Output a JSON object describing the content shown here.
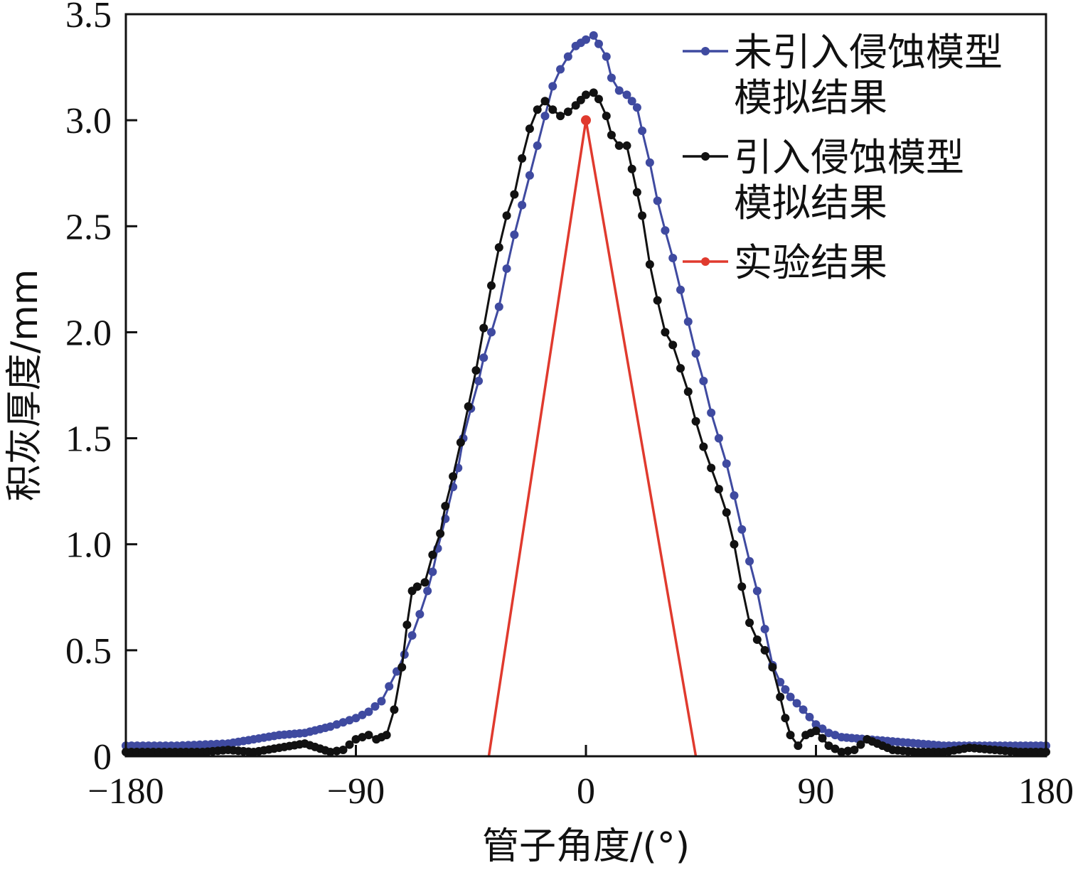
{
  "chart_data": {
    "type": "line",
    "xlabel": "管子角度/(°)",
    "ylabel": "积灰厚度/mm",
    "xlim": [
      -180,
      180
    ],
    "ylim": [
      0,
      3.5
    ],
    "x_ticks": [
      -180,
      -90,
      0,
      90,
      180
    ],
    "x_tick_labels": [
      "−180",
      "−90",
      "0",
      "90",
      "180"
    ],
    "y_ticks": [
      0,
      0.5,
      1.0,
      1.5,
      2.0,
      2.5,
      3.0,
      3.5
    ],
    "y_tick_labels": [
      "0",
      "0.5",
      "1.0",
      "1.5",
      "2.0",
      "2.5",
      "3.0",
      "3.5"
    ],
    "grid": false,
    "legend_position": "top-right",
    "series": [
      {
        "name": "未引入侵蚀模型模拟结果",
        "legend_lines": [
          "未引入侵蚀模型",
          "模拟结果"
        ],
        "color": "#3f4aa0",
        "marker": true,
        "x": [
          -180,
          -160,
          -140,
          -130,
          -120,
          -110,
          -100,
          -95,
          -90,
          -85,
          -80,
          -77,
          -74,
          -71,
          -68,
          -65,
          -62,
          -60,
          -58,
          -55,
          -52,
          -50,
          -48,
          -45,
          -42,
          -40,
          -37,
          -34,
          -31,
          -28,
          -25,
          -22,
          -19,
          -16,
          -13,
          -10,
          -7,
          -4,
          0,
          3,
          5,
          8,
          10,
          13,
          16,
          20,
          22,
          25,
          28,
          31,
          34,
          37,
          40,
          43,
          46,
          49,
          52,
          55,
          58,
          61,
          64,
          67,
          70,
          73,
          76,
          80,
          85,
          90,
          95,
          100,
          110,
          120,
          130,
          140,
          150,
          160,
          170,
          180
        ],
        "y": [
          0.05,
          0.05,
          0.06,
          0.08,
          0.1,
          0.11,
          0.14,
          0.16,
          0.18,
          0.21,
          0.26,
          0.33,
          0.4,
          0.48,
          0.57,
          0.67,
          0.78,
          0.87,
          0.98,
          1.12,
          1.27,
          1.36,
          1.5,
          1.64,
          1.77,
          1.88,
          2.0,
          2.12,
          2.3,
          2.46,
          2.6,
          2.74,
          2.88,
          3.02,
          3.16,
          3.24,
          3.3,
          3.35,
          3.38,
          3.4,
          3.36,
          3.3,
          3.2,
          3.14,
          3.12,
          3.06,
          2.95,
          2.8,
          2.62,
          2.48,
          2.35,
          2.2,
          2.05,
          1.9,
          1.77,
          1.62,
          1.5,
          1.38,
          1.23,
          1.07,
          0.92,
          0.78,
          0.6,
          0.43,
          0.35,
          0.28,
          0.22,
          0.15,
          0.11,
          0.09,
          0.08,
          0.07,
          0.06,
          0.05,
          0.05,
          0.05,
          0.05,
          0.05
        ]
      },
      {
        "name": "引入侵蚀模型模拟结果",
        "legend_lines": [
          "引入侵蚀模型",
          "模拟结果"
        ],
        "color": "#111111",
        "marker": true,
        "x": [
          -180,
          -150,
          -140,
          -130,
          -120,
          -110,
          -100,
          -95,
          -90,
          -85,
          -82,
          -78,
          -75,
          -72,
          -70,
          -68,
          -66,
          -63,
          -60,
          -57,
          -55,
          -52,
          -49,
          -46,
          -43,
          -40,
          -37,
          -34,
          -31,
          -28,
          -25,
          -22,
          -19,
          -16,
          -13,
          -10,
          -7,
          -4,
          0,
          3,
          5,
          8,
          10,
          13,
          16,
          20,
          22,
          25,
          28,
          31,
          34,
          37,
          40,
          43,
          46,
          49,
          52,
          55,
          58,
          61,
          64,
          67,
          70,
          73,
          76,
          78,
          80,
          83,
          86,
          90,
          95,
          100,
          105,
          110,
          120,
          130,
          140,
          150,
          160,
          170,
          180
        ],
        "y": [
          0.02,
          0.02,
          0.03,
          0.02,
          0.04,
          0.06,
          0.02,
          0.03,
          0.08,
          0.1,
          0.08,
          0.1,
          0.22,
          0.42,
          0.62,
          0.78,
          0.8,
          0.82,
          0.95,
          1.05,
          1.18,
          1.32,
          1.48,
          1.65,
          1.82,
          2.02,
          2.22,
          2.4,
          2.55,
          2.65,
          2.82,
          2.96,
          3.05,
          3.09,
          3.05,
          3.02,
          3.04,
          3.07,
          3.12,
          3.13,
          3.1,
          3.02,
          2.93,
          2.88,
          2.88,
          2.66,
          2.55,
          2.32,
          2.15,
          2.0,
          1.94,
          1.83,
          1.72,
          1.58,
          1.46,
          1.36,
          1.26,
          1.15,
          1.0,
          0.8,
          0.63,
          0.55,
          0.5,
          0.42,
          0.28,
          0.18,
          0.1,
          0.05,
          0.1,
          0.12,
          0.05,
          0.02,
          0.03,
          0.08,
          0.03,
          0.02,
          0.02,
          0.04,
          0.03,
          0.02,
          0.02
        ]
      },
      {
        "name": "实验结果",
        "legend_lines": [
          "实验结果"
        ],
        "color": "#e03a2e",
        "marker": false,
        "peak_marker": true,
        "x": [
          -38,
          0,
          43
        ],
        "y": [
          0,
          3.0,
          0
        ]
      }
    ]
  }
}
